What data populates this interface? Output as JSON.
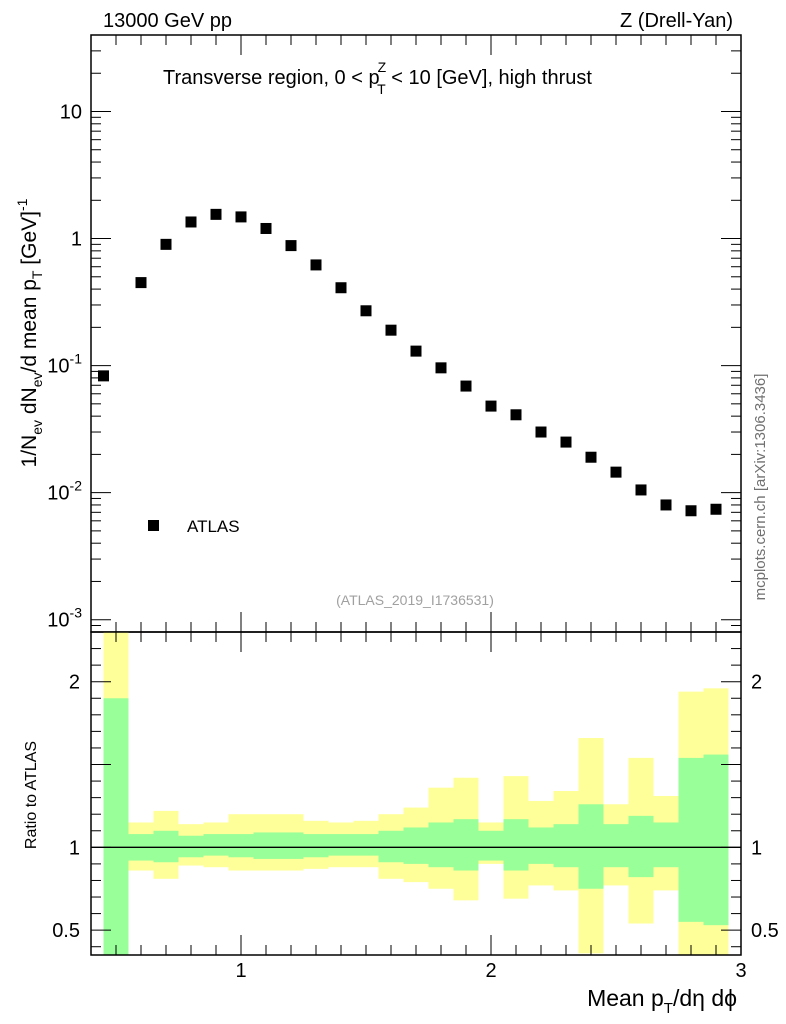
{
  "header": {
    "left": "13000 GeV pp",
    "right": "Z (Drell-Yan)"
  },
  "side_label": "mcplots.cern.ch [arXiv:1306.3436]",
  "watermark": "(ATLAS_2019_I1736531)",
  "colors": {
    "band_inner": "#99ff99",
    "band_outer": "#ffff99",
    "marker": "#000000"
  },
  "chart_data": [
    {
      "type": "scatter",
      "panel": "main",
      "title": "Transverse region, 0 < pT^Z < 10 [GeV], high thrust",
      "title_parts": {
        "pre": "Transverse region, 0 < p",
        "sup": "Z",
        "sub": "T",
        "post": " < 10 [GeV], high thrust"
      },
      "ylabel": "1/N_ev dN_ev/d mean p_T [GeV]^-1",
      "ylabel_parts": {
        "a": "1/N",
        "a_sub": "ev",
        "b": " dN",
        "b_sub": "ev",
        "c": "/d mean p",
        "c_sub": "T",
        "d": " [GeV]",
        "d_sup": "-1"
      },
      "yscale": "log",
      "ylim": [
        0.0008,
        40
      ],
      "xlim": [
        0.4,
        3.0
      ],
      "y_ticks": [
        {
          "value": 0.001,
          "base": "10",
          "exp": "-3"
        },
        {
          "value": 0.01,
          "base": "10",
          "exp": "-2"
        },
        {
          "value": 0.1,
          "base": "10",
          "exp": "-1"
        },
        {
          "value": 1,
          "base": "1",
          "exp": ""
        },
        {
          "value": 10,
          "base": "10",
          "exp": ""
        }
      ],
      "legend": [
        {
          "name": "ATLAS",
          "marker": "square",
          "position": "lower-left"
        }
      ],
      "series": [
        {
          "name": "ATLAS",
          "x": [
            0.45,
            0.6,
            0.7,
            0.8,
            0.9,
            1.0,
            1.1,
            1.2,
            1.3,
            1.4,
            1.5,
            1.6,
            1.7,
            1.8,
            1.9,
            2.0,
            2.1,
            2.2,
            2.3,
            2.4,
            2.5,
            2.6,
            2.7,
            2.8,
            2.9
          ],
          "y": [
            0.083,
            0.45,
            0.9,
            1.35,
            1.55,
            1.48,
            1.2,
            0.88,
            0.62,
            0.41,
            0.27,
            0.19,
            0.13,
            0.096,
            0.069,
            0.048,
            0.041,
            0.03,
            0.025,
            0.019,
            0.0145,
            0.0105,
            0.008,
            0.0072,
            0.0074
          ]
        }
      ]
    },
    {
      "type": "area",
      "panel": "ratio",
      "ylabel": "Ratio to ATLAS",
      "xlabel": "Mean p_T/dη dϕ",
      "xlabel_parts": {
        "pre": "Mean p",
        "sub": "T",
        "post": "/dη dϕ"
      },
      "xlim": [
        0.4,
        3.0
      ],
      "ylim": [
        0.35,
        2.3
      ],
      "x_ticks": [
        "1",
        "2",
        "3"
      ],
      "y_ticks": [
        "0.5",
        "1",
        "2"
      ],
      "reference_line": 1,
      "bins": [
        [
          0.45,
          0.55
        ],
        [
          0.55,
          0.65
        ],
        [
          0.65,
          0.75
        ],
        [
          0.75,
          0.85
        ],
        [
          0.85,
          0.95
        ],
        [
          0.95,
          1.05
        ],
        [
          1.05,
          1.15
        ],
        [
          1.15,
          1.25
        ],
        [
          1.25,
          1.35
        ],
        [
          1.35,
          1.45
        ],
        [
          1.45,
          1.55
        ],
        [
          1.55,
          1.65
        ],
        [
          1.65,
          1.75
        ],
        [
          1.75,
          1.85
        ],
        [
          1.85,
          1.95
        ],
        [
          1.95,
          2.05
        ],
        [
          2.05,
          2.15
        ],
        [
          2.15,
          2.25
        ],
        [
          2.25,
          2.35
        ],
        [
          2.35,
          2.45
        ],
        [
          2.45,
          2.55
        ],
        [
          2.55,
          2.65
        ],
        [
          2.65,
          2.75
        ],
        [
          2.75,
          2.85
        ],
        [
          2.85,
          2.95
        ]
      ],
      "inner_band": {
        "low": [
          0.35,
          0.92,
          0.91,
          0.94,
          0.95,
          0.94,
          0.93,
          0.93,
          0.94,
          0.95,
          0.95,
          0.91,
          0.9,
          0.88,
          0.86,
          0.92,
          0.86,
          0.9,
          0.88,
          0.75,
          0.88,
          0.82,
          0.88,
          0.55,
          0.53
        ],
        "high": [
          1.9,
          1.08,
          1.1,
          1.07,
          1.08,
          1.08,
          1.09,
          1.09,
          1.08,
          1.08,
          1.08,
          1.1,
          1.12,
          1.15,
          1.17,
          1.1,
          1.17,
          1.12,
          1.14,
          1.26,
          1.14,
          1.19,
          1.15,
          1.54,
          1.56
        ]
      },
      "outer_band": {
        "low": [
          0.35,
          0.86,
          0.81,
          0.89,
          0.88,
          0.86,
          0.86,
          0.86,
          0.87,
          0.88,
          0.88,
          0.81,
          0.79,
          0.75,
          0.68,
          0.9,
          0.69,
          0.77,
          0.74,
          0.36,
          0.77,
          0.54,
          0.74,
          0.35,
          0.35
        ],
        "high": [
          2.3,
          1.15,
          1.22,
          1.14,
          1.15,
          1.2,
          1.2,
          1.2,
          1.16,
          1.15,
          1.16,
          1.2,
          1.24,
          1.36,
          1.42,
          1.15,
          1.43,
          1.28,
          1.34,
          1.66,
          1.26,
          1.54,
          1.31,
          1.94,
          1.96
        ]
      }
    }
  ]
}
